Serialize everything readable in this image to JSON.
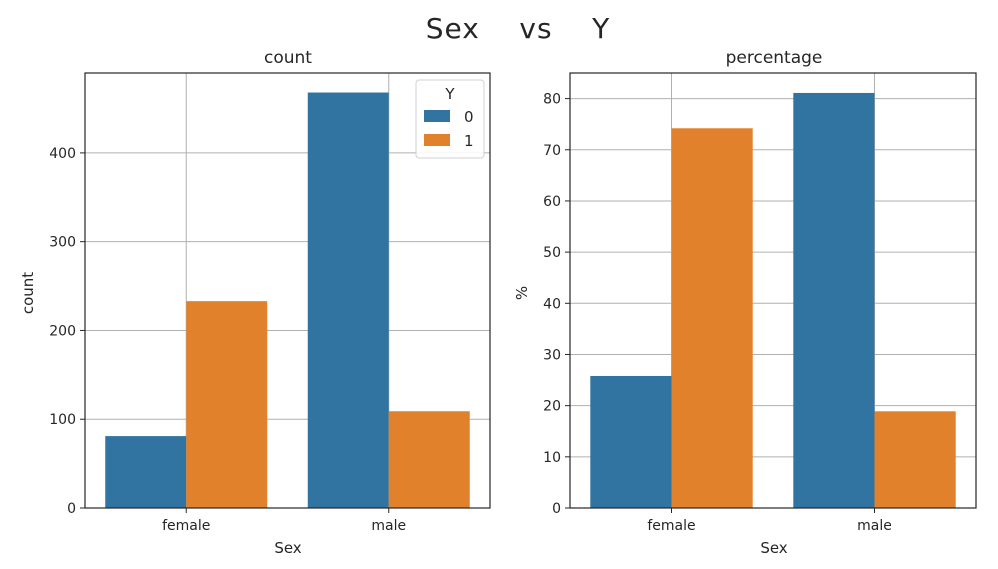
{
  "figure_title": "Sex    vs    Y",
  "colors": {
    "series0": "#3274a1",
    "series1": "#e1812c"
  },
  "chart_data": [
    {
      "type": "bar",
      "title": "count",
      "xlabel": "Sex",
      "ylabel": "count",
      "categories": [
        "female",
        "male"
      ],
      "series": [
        {
          "name": "0",
          "values": [
            81,
            468
          ]
        },
        {
          "name": "1",
          "values": [
            233,
            109
          ]
        }
      ],
      "ylim": [
        0,
        490
      ],
      "yticks": [
        0,
        100,
        200,
        300,
        400
      ],
      "grid": true,
      "legend": {
        "title": "Y",
        "placement": "top-right"
      }
    },
    {
      "type": "bar",
      "title": "percentage",
      "xlabel": "Sex",
      "ylabel": "%",
      "categories": [
        "female",
        "male"
      ],
      "series": [
        {
          "name": "0",
          "values": [
            25.8,
            81.1
          ]
        },
        {
          "name": "1",
          "values": [
            74.2,
            18.9
          ]
        }
      ],
      "ylim": [
        0,
        85
      ],
      "yticks": [
        0,
        10,
        20,
        30,
        40,
        50,
        60,
        70,
        80
      ],
      "grid": true
    }
  ]
}
